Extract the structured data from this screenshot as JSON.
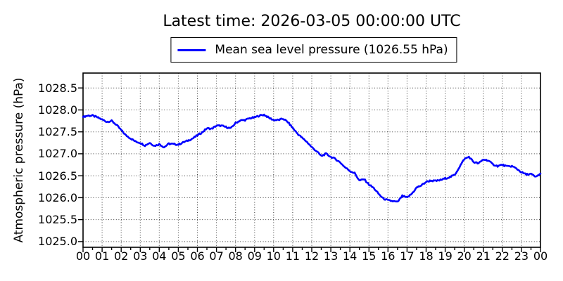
{
  "title": "Latest time: 2026-03-05 00:00:00 UTC",
  "legend": {
    "label": "Mean sea level pressure (1026.55 hPa)",
    "line_color": "#0000ff",
    "position": "top-center"
  },
  "chart_data": {
    "type": "line",
    "title": "Latest time: 2026-03-05 00:00:00 UTC",
    "xlabel": "",
    "ylabel": "Atmospheric pressure (hPa)",
    "grid": "dotted",
    "legend_position": "top-center",
    "background_color": "#ffffff",
    "line_color": "#0000ff",
    "grid_color": "#3c3c3c",
    "xlim": [
      0,
      24
    ],
    "ylim": [
      1024.87,
      1028.84
    ],
    "x_ticks": {
      "values": [
        0,
        1,
        2,
        3,
        4,
        5,
        6,
        7,
        8,
        9,
        10,
        11,
        12,
        13,
        14,
        15,
        16,
        17,
        18,
        19,
        20,
        21,
        22,
        23,
        24
      ],
      "labels": [
        "00",
        "01",
        "02",
        "03",
        "04",
        "05",
        "06",
        "07",
        "08",
        "09",
        "10",
        "11",
        "12",
        "13",
        "14",
        "15",
        "16",
        "17",
        "18",
        "19",
        "20",
        "21",
        "22",
        "23",
        "00"
      ]
    },
    "y_ticks": {
      "values": [
        1028.5,
        1028.0,
        1027.5,
        1027.0,
        1026.5,
        1026.0,
        1025.5,
        1025.0
      ],
      "labels": [
        "1028.5",
        "1028.0",
        "1027.5",
        "1027.0",
        "1026.5",
        "1026.0",
        "1025.5",
        "1025.0"
      ]
    },
    "x_start_hour": 0,
    "x_step_hours": 0.25,
    "noise_amplitude_hpa": 0.017,
    "series": [
      {
        "name": "Mean sea level pressure",
        "unit": "hPa",
        "latest_value": 1026.55,
        "values": [
          1027.84,
          1027.87,
          1027.87,
          1027.83,
          1027.78,
          1027.73,
          1027.75,
          1027.66,
          1027.54,
          1027.42,
          1027.35,
          1027.28,
          1027.25,
          1027.19,
          1027.25,
          1027.18,
          1027.22,
          1027.15,
          1027.23,
          1027.22,
          1027.21,
          1027.26,
          1027.3,
          1027.35,
          1027.42,
          1027.49,
          1027.58,
          1027.57,
          1027.64,
          1027.64,
          1027.61,
          1027.58,
          1027.7,
          1027.76,
          1027.77,
          1027.81,
          1027.83,
          1027.87,
          1027.89,
          1027.82,
          1027.77,
          1027.77,
          1027.8,
          1027.72,
          1027.59,
          1027.46,
          1027.36,
          1027.27,
          1027.15,
          1027.06,
          1026.95,
          1027.0,
          1026.93,
          1026.88,
          1026.8,
          1026.69,
          1026.61,
          1026.56,
          1026.39,
          1026.42,
          1026.3,
          1026.22,
          1026.09,
          1025.98,
          1025.94,
          1025.92,
          1025.9,
          1026.04,
          1026.0,
          1026.09,
          1026.23,
          1026.28,
          1026.36,
          1026.39,
          1026.38,
          1026.4,
          1026.44,
          1026.47,
          1026.52,
          1026.7,
          1026.88,
          1026.93,
          1026.81,
          1026.78,
          1026.87,
          1026.85,
          1026.76,
          1026.72,
          1026.75,
          1026.71,
          1026.72,
          1026.66,
          1026.58,
          1026.53,
          1026.54,
          1026.47,
          1026.55
        ]
      }
    ]
  }
}
